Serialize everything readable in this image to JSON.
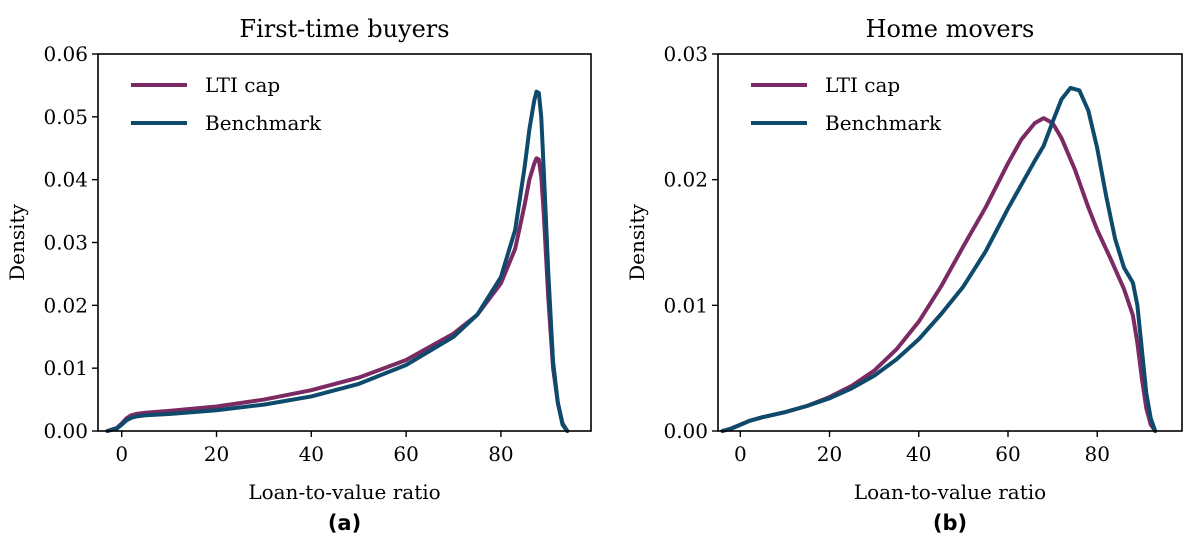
{
  "chart_data": [
    {
      "type": "line",
      "title": "First-time buyers",
      "panel_label": "(a)",
      "xlabel": "Loan-to-value ratio",
      "ylabel": "Density",
      "xlim": [
        -5,
        99
      ],
      "ylim": [
        0,
        0.06
      ],
      "xticks": [
        0,
        20,
        40,
        60,
        80
      ],
      "yticks": [
        0.0,
        0.01,
        0.02,
        0.03,
        0.04,
        0.05,
        0.06
      ],
      "ytick_labels": [
        "0.00",
        "0.01",
        "0.02",
        "0.03",
        "0.04",
        "0.05",
        "0.06"
      ],
      "grid": false,
      "legend_position": "top-left",
      "series": [
        {
          "name": "LTI cap",
          "color": "#7b2a63",
          "x": [
            -3,
            -1,
            0,
            1,
            2,
            3,
            5,
            10,
            20,
            30,
            40,
            50,
            60,
            70,
            75,
            80,
            83,
            85,
            86,
            87,
            87.5,
            88,
            88.5,
            89,
            90,
            91,
            92,
            93,
            94
          ],
          "y": [
            0.0,
            0.0005,
            0.0012,
            0.002,
            0.0025,
            0.0027,
            0.0029,
            0.0032,
            0.0039,
            0.005,
            0.0065,
            0.0085,
            0.0113,
            0.0155,
            0.0185,
            0.0235,
            0.029,
            0.036,
            0.04,
            0.0425,
            0.0434,
            0.0432,
            0.0405,
            0.035,
            0.021,
            0.01,
            0.0045,
            0.0012,
            0.0
          ]
        },
        {
          "name": "Benchmark",
          "color": "#0d4a6b",
          "x": [
            -3,
            -1,
            0,
            1,
            2,
            3,
            5,
            10,
            20,
            30,
            40,
            50,
            60,
            70,
            75,
            80,
            83,
            85,
            86,
            87,
            87.5,
            88,
            88.5,
            89,
            90,
            91,
            92,
            93,
            94
          ],
          "y": [
            0.0,
            0.0004,
            0.001,
            0.0017,
            0.0021,
            0.0023,
            0.0025,
            0.0027,
            0.0033,
            0.0042,
            0.0055,
            0.0075,
            0.0105,
            0.015,
            0.0185,
            0.0245,
            0.032,
            0.042,
            0.048,
            0.0525,
            0.054,
            0.0538,
            0.05,
            0.042,
            0.025,
            0.011,
            0.0045,
            0.001,
            0.0
          ]
        }
      ]
    },
    {
      "type": "line",
      "title": "Home movers",
      "panel_label": "(b)",
      "xlabel": "Loan-to-value ratio",
      "ylabel": "Density",
      "xlim": [
        -5,
        99
      ],
      "ylim": [
        0,
        0.03
      ],
      "xticks": [
        0,
        20,
        40,
        60,
        80
      ],
      "yticks": [
        0.0,
        0.01,
        0.02,
        0.03
      ],
      "ytick_labels": [
        "0.00",
        "0.01",
        "0.02",
        "0.03"
      ],
      "grid": false,
      "legend_position": "top-left",
      "series": [
        {
          "name": "LTI cap",
          "color": "#7b2a63",
          "x": [
            -4,
            -2,
            0,
            2,
            5,
            10,
            15,
            20,
            25,
            30,
            35,
            40,
            45,
            50,
            55,
            60,
            63,
            66,
            68,
            70,
            72,
            75,
            78,
            80,
            83,
            86,
            88,
            89,
            90,
            91,
            92,
            93
          ],
          "y": [
            0.0,
            0.0002,
            0.0005,
            0.0008,
            0.0011,
            0.0015,
            0.002,
            0.0027,
            0.0036,
            0.0048,
            0.0065,
            0.0087,
            0.0115,
            0.0147,
            0.0178,
            0.0213,
            0.0232,
            0.0245,
            0.0249,
            0.0245,
            0.0233,
            0.0208,
            0.0178,
            0.016,
            0.0137,
            0.0113,
            0.0092,
            0.007,
            0.0042,
            0.0018,
            0.0005,
            0.0
          ]
        },
        {
          "name": "Benchmark",
          "color": "#0d4a6b",
          "x": [
            -4,
            -2,
            0,
            2,
            5,
            10,
            15,
            20,
            25,
            30,
            35,
            40,
            45,
            50,
            55,
            60,
            63,
            66,
            68,
            70,
            72,
            74,
            76,
            78,
            80,
            82,
            84,
            86,
            88,
            89,
            90,
            91,
            92,
            93
          ],
          "y": [
            0.0,
            0.0002,
            0.0005,
            0.0008,
            0.0011,
            0.0015,
            0.002,
            0.0026,
            0.0034,
            0.0044,
            0.0057,
            0.0073,
            0.0093,
            0.0115,
            0.0143,
            0.0177,
            0.0196,
            0.0215,
            0.0227,
            0.0246,
            0.0264,
            0.0273,
            0.0271,
            0.0255,
            0.0225,
            0.0187,
            0.0153,
            0.013,
            0.0118,
            0.01,
            0.0065,
            0.003,
            0.001,
            0.0
          ]
        }
      ]
    }
  ]
}
